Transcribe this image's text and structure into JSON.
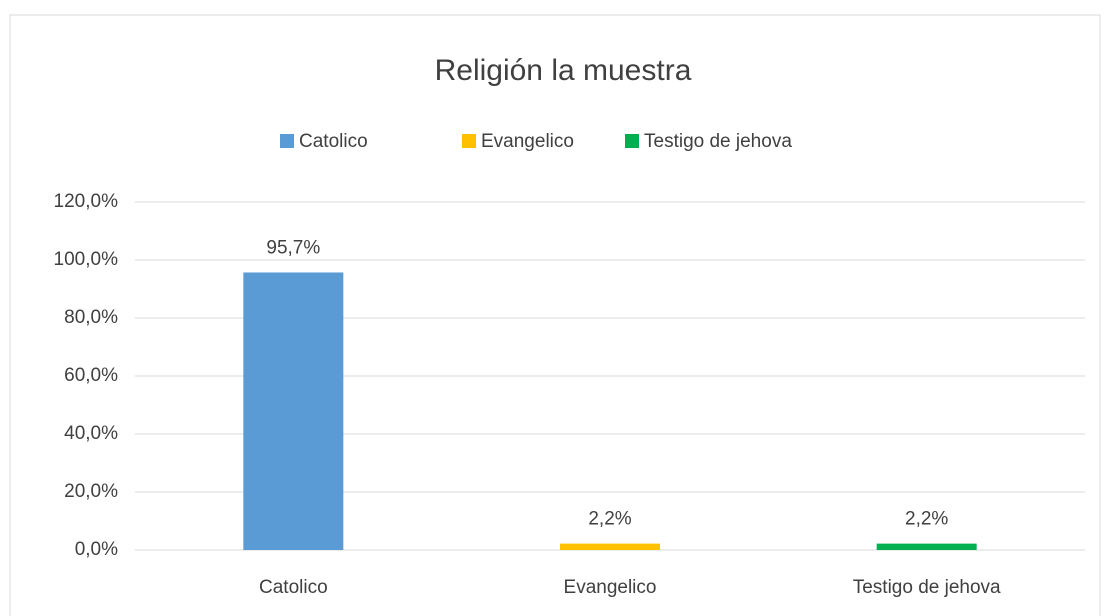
{
  "chart_data": {
    "type": "bar",
    "title": "Religión  la muestra",
    "categories": [
      "Catolico",
      "Evangelico",
      "Testigo de jehova"
    ],
    "values": [
      95.7,
      2.2,
      2.2
    ],
    "value_labels": [
      "95,7%",
      "2,2%",
      "2,2%"
    ],
    "colors": [
      "#5b9bd5",
      "#ffc000",
      "#00b050"
    ],
    "ylim": [
      0,
      120
    ],
    "yticks": [
      {
        "value": 0,
        "label": "0,0%"
      },
      {
        "value": 20,
        "label": "20,0%"
      },
      {
        "value": 40,
        "label": "40,0%"
      },
      {
        "value": 60,
        "label": "60,0%"
      },
      {
        "value": 80,
        "label": "80,0%"
      },
      {
        "value": 100,
        "label": "100,0%"
      },
      {
        "value": 120,
        "label": "120,0%"
      }
    ],
    "grid": true,
    "legend": "top"
  }
}
